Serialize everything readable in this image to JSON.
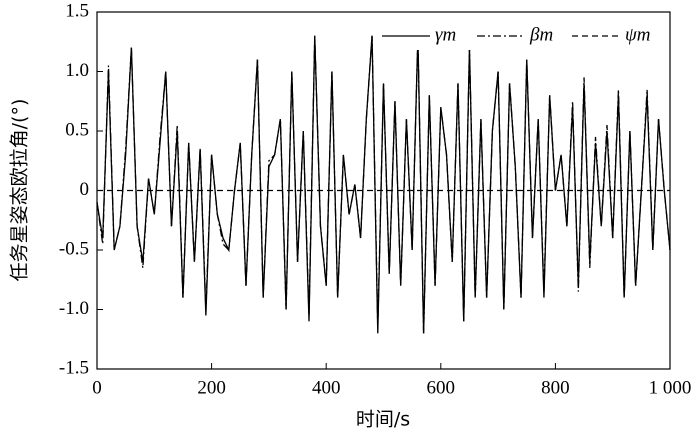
{
  "chart_data": {
    "type": "line",
    "xlabel": "时间/s",
    "ylabel": "任务星姿态欧拉角/(°)",
    "x": [
      0,
      10,
      20,
      30,
      40,
      50,
      60,
      70,
      80,
      90,
      100,
      110,
      120,
      130,
      140,
      150,
      160,
      170,
      180,
      190,
      200,
      210,
      220,
      230,
      240,
      250,
      260,
      270,
      280,
      290,
      300,
      310,
      320,
      330,
      340,
      350,
      360,
      370,
      380,
      390,
      400,
      410,
      420,
      430,
      440,
      450,
      460,
      470,
      480,
      490,
      500,
      510,
      520,
      530,
      540,
      550,
      560,
      570,
      580,
      590,
      600,
      610,
      620,
      630,
      640,
      650,
      660,
      670,
      680,
      690,
      700,
      710,
      720,
      730,
      740,
      750,
      760,
      770,
      780,
      790,
      800,
      810,
      820,
      830,
      840,
      850,
      860,
      870,
      880,
      890,
      900,
      910,
      920,
      930,
      940,
      950,
      960,
      970,
      980,
      990,
      1000
    ],
    "series": [
      {
        "name": "γm",
        "color": "#000000",
        "dash": "solid",
        "values": [
          -0.1,
          -0.4,
          1.0,
          -0.5,
          -0.3,
          0.3,
          1.2,
          -0.3,
          -0.6,
          0.1,
          -0.2,
          0.4,
          1.0,
          -0.3,
          0.5,
          -0.9,
          0.4,
          -0.6,
          0.35,
          -1.05,
          0.3,
          -0.2,
          -0.4,
          -0.5,
          0.0,
          0.4,
          -0.8,
          0.3,
          1.1,
          -0.9,
          0.2,
          0.3,
          0.6,
          -1.0,
          1.0,
          -0.6,
          0.5,
          -1.1,
          1.3,
          -0.3,
          -0.8,
          1.0,
          -0.9,
          0.3,
          -0.2,
          0.05,
          -0.4,
          0.6,
          1.3,
          -1.2,
          0.9,
          -0.7,
          0.75,
          -0.8,
          0.6,
          -0.5,
          1.3,
          -1.2,
          0.8,
          -0.8,
          0.7,
          0.3,
          -0.6,
          0.9,
          -1.1,
          1.2,
          -0.9,
          0.6,
          -0.9,
          0.5,
          1.0,
          -1.0,
          0.9,
          0.2,
          -0.9,
          1.1,
          -0.4,
          0.6,
          -0.9,
          0.8,
          0.0,
          0.3,
          -0.3,
          0.7,
          -0.8,
          0.9,
          -0.6,
          0.4,
          -0.3,
          0.5,
          -0.4,
          0.8,
          -0.9,
          0.5,
          -0.8,
          0.0,
          0.8,
          -0.5,
          0.6,
          0.0,
          -0.5
        ]
      },
      {
        "name": "βm",
        "color": "#000000",
        "dash": "dashdot",
        "values": [
          -0.1,
          -0.45,
          1.05,
          -0.5,
          -0.3,
          0.35,
          1.2,
          -0.3,
          -0.65,
          0.1,
          -0.2,
          0.45,
          1.0,
          -0.3,
          0.55,
          -0.9,
          0.4,
          -0.6,
          0.35,
          -1.0,
          0.3,
          -0.2,
          -0.45,
          -0.5,
          0.0,
          0.4,
          -0.8,
          0.3,
          1.1,
          -0.9,
          0.25,
          0.3,
          0.6,
          -1.0,
          1.0,
          -0.6,
          0.5,
          -1.05,
          1.3,
          -0.3,
          -0.8,
          1.0,
          -0.9,
          0.3,
          -0.2,
          0.05,
          -0.4,
          0.6,
          1.3,
          -1.15,
          0.9,
          -0.7,
          0.75,
          -0.8,
          0.6,
          -0.5,
          1.3,
          -1.2,
          0.8,
          -0.8,
          0.7,
          0.3,
          -0.6,
          0.9,
          -1.1,
          1.2,
          -0.9,
          0.6,
          -0.9,
          0.5,
          1.0,
          -1.0,
          0.9,
          0.2,
          -0.9,
          1.1,
          -0.4,
          0.6,
          -0.85,
          0.8,
          0.0,
          0.3,
          -0.3,
          0.75,
          -0.85,
          0.95,
          -0.65,
          0.45,
          -0.3,
          0.55,
          -0.4,
          0.85,
          -0.9,
          0.5,
          -0.8,
          0.0,
          0.85,
          -0.5,
          0.6,
          0.0,
          -0.5
        ]
      },
      {
        "name": "ψm",
        "color": "#000000",
        "dash": "dashed",
        "values": [
          0,
          0,
          0,
          0,
          0,
          0,
          0,
          0,
          0,
          0,
          0,
          0,
          0,
          0,
          0,
          0,
          0,
          0,
          0,
          0,
          0,
          0,
          0,
          0,
          0,
          0,
          0,
          0,
          0,
          0,
          0,
          0,
          0,
          0,
          0,
          0,
          0,
          0,
          0,
          0,
          0,
          0,
          0,
          0,
          0,
          0,
          0,
          0,
          0,
          0,
          0,
          0,
          0,
          0,
          0,
          0,
          0,
          0,
          0,
          0,
          0,
          0,
          0,
          0,
          0,
          0,
          0,
          0,
          0,
          0,
          0,
          0,
          0,
          0,
          0,
          0,
          0,
          0,
          0,
          0,
          0,
          0,
          0,
          0,
          0,
          0,
          0,
          0,
          0,
          0,
          0,
          0,
          0,
          0,
          0,
          0,
          0,
          0,
          0,
          0,
          0
        ]
      }
    ],
    "xlim": [
      0,
      1000
    ],
    "xticks": [
      0,
      200,
      400,
      600,
      800,
      {
        "value": 1000,
        "label": "1 000"
      }
    ],
    "ylim": [
      -1.5,
      1.5
    ],
    "yticks": [
      -1.5,
      {
        "value": -1.0,
        "label": "-1.0"
      },
      -0.5,
      0,
      0.5,
      {
        "value": 1.0,
        "label": "1.0"
      },
      1.5
    ],
    "legend": "upper right"
  }
}
